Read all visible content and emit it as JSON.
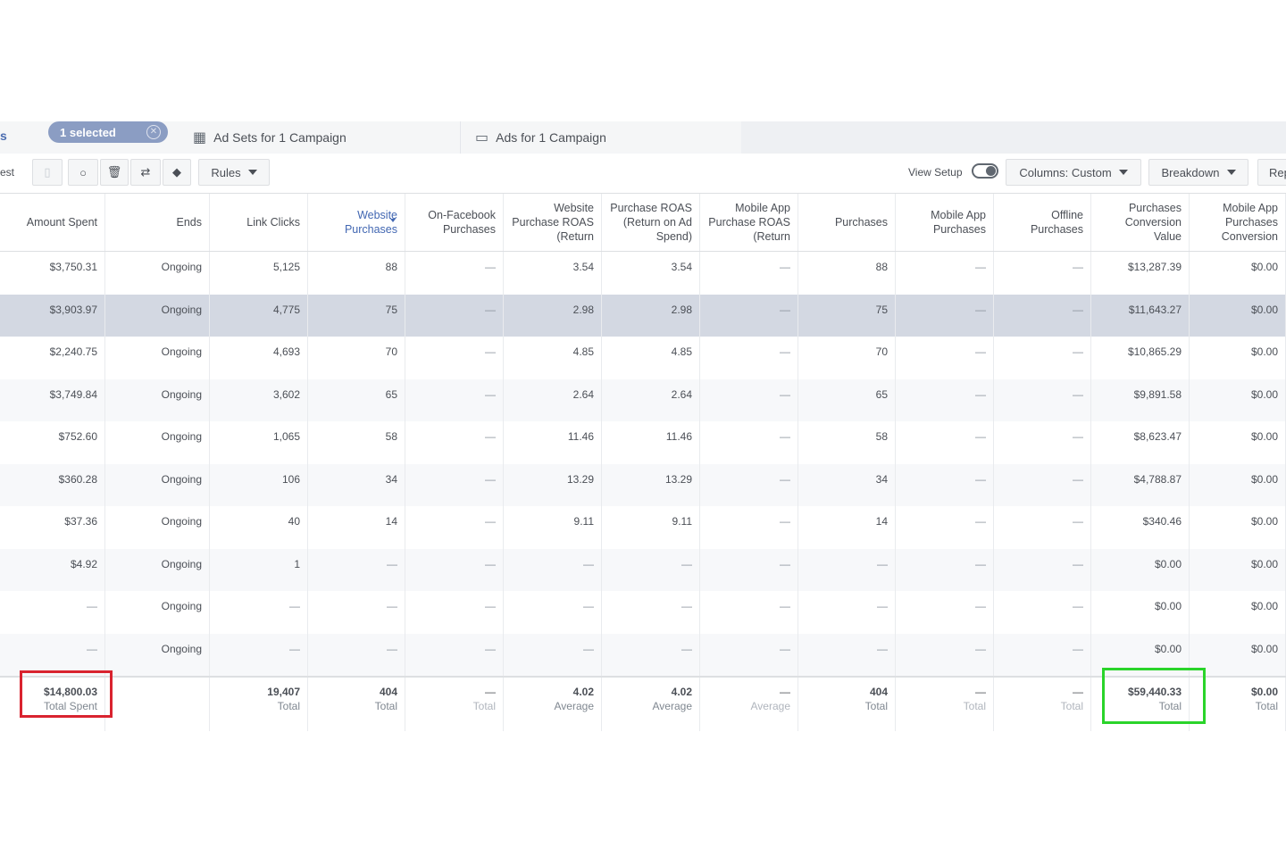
{
  "tabs": {
    "left_cut": "s",
    "selected": "1 selected",
    "adsets": "Ad Sets for 1 Campaign",
    "ads": "Ads for 1 Campaign"
  },
  "toolbar": {
    "left_cut": "est",
    "rules": "Rules",
    "view_setup": "View Setup",
    "columns": "Columns: Custom",
    "breakdown": "Breakdown",
    "reports_cut": "Rep"
  },
  "columns": [
    "Amount Spent",
    "Ends",
    "Link Clicks",
    "Website Purchases",
    "On-Facebook Purchases",
    "Website Purchase ROAS (Return",
    "Purchase ROAS (Return on Ad Spend)",
    "Mobile App Purchase ROAS (Return",
    "Purchases",
    "Mobile App Purchases",
    "Offline Purchases",
    "Purchases Conversion Value",
    "Mobile App Purchases Conversion"
  ],
  "rows": [
    [
      "$3,750.31",
      "Ongoing",
      "5,125",
      "88",
      "—",
      "3.54",
      "3.54",
      "—",
      "88",
      "—",
      "—",
      "$13,287.39",
      "$0.00"
    ],
    [
      "$3,903.97",
      "Ongoing",
      "4,775",
      "75",
      "—",
      "2.98",
      "2.98",
      "—",
      "75",
      "—",
      "—",
      "$11,643.27",
      "$0.00"
    ],
    [
      "$2,240.75",
      "Ongoing",
      "4,693",
      "70",
      "—",
      "4.85",
      "4.85",
      "—",
      "70",
      "—",
      "—",
      "$10,865.29",
      "$0.00"
    ],
    [
      "$3,749.84",
      "Ongoing",
      "3,602",
      "65",
      "—",
      "2.64",
      "2.64",
      "—",
      "65",
      "—",
      "—",
      "$9,891.58",
      "$0.00"
    ],
    [
      "$752.60",
      "Ongoing",
      "1,065",
      "58",
      "—",
      "11.46",
      "11.46",
      "—",
      "58",
      "—",
      "—",
      "$8,623.47",
      "$0.00"
    ],
    [
      "$360.28",
      "Ongoing",
      "106",
      "34",
      "—",
      "13.29",
      "13.29",
      "—",
      "34",
      "—",
      "—",
      "$4,788.87",
      "$0.00"
    ],
    [
      "$37.36",
      "Ongoing",
      "40",
      "14",
      "—",
      "9.11",
      "9.11",
      "—",
      "14",
      "—",
      "—",
      "$340.46",
      "$0.00"
    ],
    [
      "$4.92",
      "Ongoing",
      "1",
      "—",
      "—",
      "—",
      "—",
      "—",
      "—",
      "—",
      "—",
      "$0.00",
      "$0.00"
    ],
    [
      "—",
      "Ongoing",
      "—",
      "—",
      "—",
      "—",
      "—",
      "—",
      "—",
      "—",
      "—",
      "$0.00",
      "$0.00"
    ],
    [
      "—",
      "Ongoing",
      "—",
      "—",
      "—",
      "—",
      "—",
      "—",
      "—",
      "—",
      "—",
      "$0.00",
      "$0.00"
    ]
  ],
  "totals": [
    {
      "value": "$14,800.03",
      "label": "Total Spent"
    },
    {
      "value": "",
      "label": ""
    },
    {
      "value": "19,407",
      "label": "Total"
    },
    {
      "value": "404",
      "label": "Total"
    },
    {
      "value": "—",
      "label": "Total"
    },
    {
      "value": "4.02",
      "label": "Average"
    },
    {
      "value": "4.02",
      "label": "Average"
    },
    {
      "value": "—",
      "label": "Average"
    },
    {
      "value": "404",
      "label": "Total"
    },
    {
      "value": "—",
      "label": "Total"
    },
    {
      "value": "—",
      "label": "Total"
    },
    {
      "value": "$59,440.33",
      "label": "Total"
    },
    {
      "value": "$0.00",
      "label": "Total"
    }
  ],
  "highlight_color_red": "#d9232f",
  "highlight_color_green": "#2ad42a"
}
